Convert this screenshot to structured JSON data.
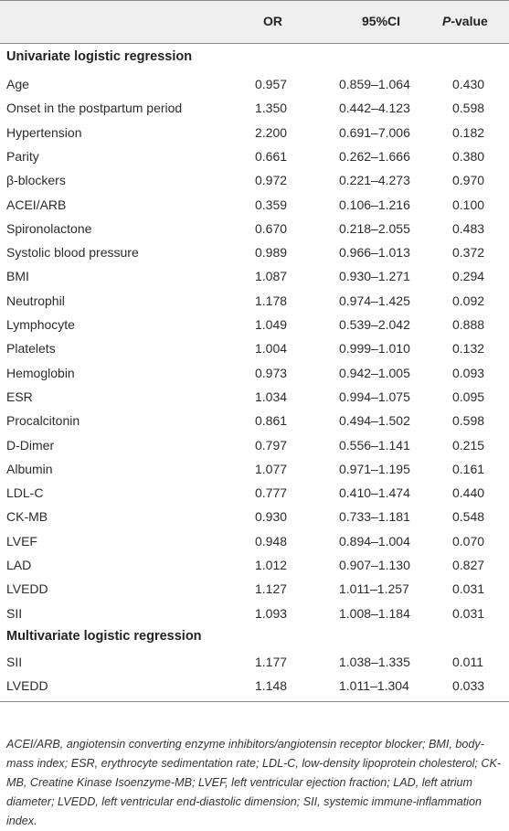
{
  "header": {
    "col_or": "OR",
    "col_ci": "95%CI",
    "col_p_italic": "P",
    "col_p_rest": "-value"
  },
  "sections": [
    {
      "title": "Univariate logistic regression",
      "rows": [
        {
          "name": "Age",
          "or": "0.957",
          "ci": "0.859–1.064",
          "p": "0.430"
        },
        {
          "name": "Onset in the postpartum period",
          "or": "1.350",
          "ci": "0.442–4.123",
          "p": "0.598"
        },
        {
          "name": "Hypertension",
          "or": "2.200",
          "ci": "0.691–7.006",
          "p": "0.182"
        },
        {
          "name": "Parity",
          "or": "0.661",
          "ci": "0.262–1.666",
          "p": "0.380"
        },
        {
          "name": "β-blockers",
          "or": "0.972",
          "ci": "0.221–4.273",
          "p": "0.970"
        },
        {
          "name": "ACEI/ARB",
          "or": "0.359",
          "ci": "0.106–1.216",
          "p": "0.100"
        },
        {
          "name": "Spironolactone",
          "or": "0.670",
          "ci": "0.218–2.055",
          "p": "0.483"
        },
        {
          "name": "Systolic blood pressure",
          "or": "0.989",
          "ci": "0.966–1.013",
          "p": "0.372"
        },
        {
          "name": "BMI",
          "or": "1.087",
          "ci": "0.930–1.271",
          "p": "0.294"
        },
        {
          "name": "Neutrophil",
          "or": "1.178",
          "ci": "0.974–1.425",
          "p": "0.092"
        },
        {
          "name": "Lymphocyte",
          "or": "1.049",
          "ci": "0.539–2.042",
          "p": "0.888"
        },
        {
          "name": "Platelets",
          "or": "1.004",
          "ci": "0.999–1.010",
          "p": "0.132"
        },
        {
          "name": "Hemoglobin",
          "or": "0.973",
          "ci": "0.942–1.005",
          "p": "0.093"
        },
        {
          "name": "ESR",
          "or": "1.034",
          "ci": "0.994–1.075",
          "p": "0.095"
        },
        {
          "name": "Procalcitonin",
          "or": "0.861",
          "ci": "0.494–1.502",
          "p": "0.598"
        },
        {
          "name": "D-Dimer",
          "or": "0.797",
          "ci": "0.556–1.141",
          "p": "0.215"
        },
        {
          "name": "Albumin",
          "or": "1.077",
          "ci": "0.971–1.195",
          "p": "0.161"
        },
        {
          "name": "LDL-C",
          "or": "0.777",
          "ci": "0.410–1.474",
          "p": "0.440"
        },
        {
          "name": "CK-MB",
          "or": "0.930",
          "ci": "0.733–1.181",
          "p": "0.548"
        },
        {
          "name": "LVEF",
          "or": "0.948",
          "ci": "0.894–1.004",
          "p": "0.070"
        },
        {
          "name": "LAD",
          "or": "1.012",
          "ci": "0.907–1.130",
          "p": "0.827"
        },
        {
          "name": "LVEDD",
          "or": "1.127",
          "ci": "1.011–1.257",
          "p": "0.031"
        },
        {
          "name": "SII",
          "or": "1.093",
          "ci": "1.008–1.184",
          "p": "0.031"
        }
      ]
    },
    {
      "title": "Multivariate logistic regression",
      "rows": [
        {
          "name": "SII",
          "or": "1.177",
          "ci": "1.038–1.335",
          "p": "0.011"
        },
        {
          "name": "LVEDD",
          "or": "1.148",
          "ci": "1.011–1.304",
          "p": "0.033"
        }
      ]
    }
  ],
  "footnote": "ACEI/ARB, angiotensin converting enzyme inhibitors/angiotensin receptor blocker; BMI, body-mass index; ESR, erythrocyte sedimentation rate; LDL-C, low-density lipoprotein cholesterol; CK-MB, Creatine Kinase Isoenzyme-MB; LVEF, left ventricular ejection fraction; LAD, left atrium diameter; LVEDD, left ventricular end-diastolic dimension; SII, systemic immune-inflammation index."
}
